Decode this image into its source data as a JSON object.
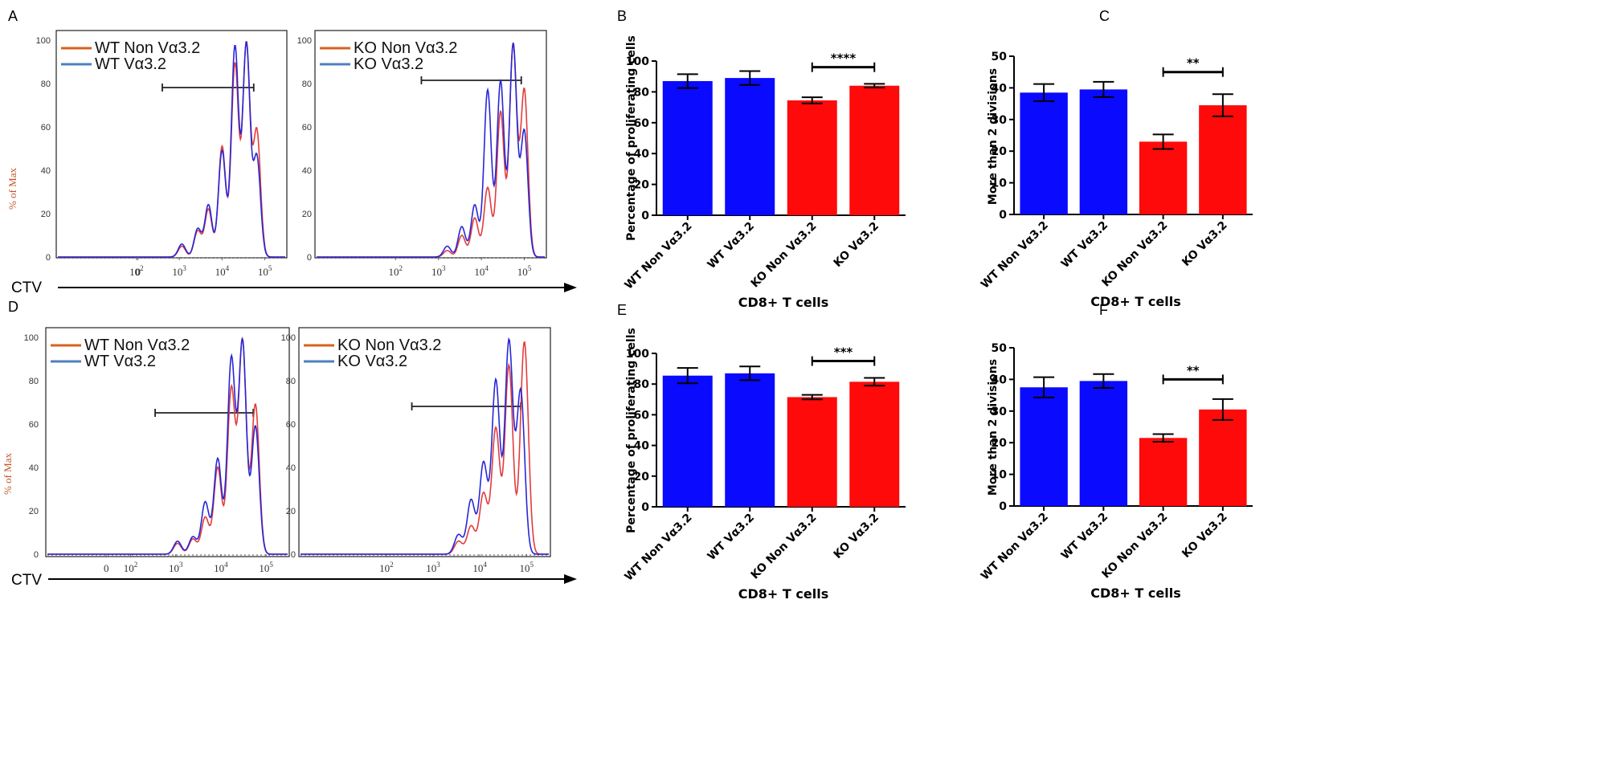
{
  "figure": {
    "axis_label": "CTV",
    "histogram_ylabel": "% of Max",
    "palette": {
      "blue_bar": "#0a0aff",
      "red_bar": "#ff0a0a",
      "blue_line": "#2727d8",
      "red_line": "#e23c3c",
      "legend_orange": "#d9611c",
      "legend_blue": "#4f7fbf",
      "ylabel_color": "#c0562a"
    }
  },
  "chart_data": [
    {
      "id": "A",
      "panel_label": "A",
      "type": "line",
      "title": "",
      "xlabel": "CTV",
      "ylabel": "% of Max",
      "x_scale": "log",
      "xlim": [
        0,
        300000
      ],
      "ylim": [
        0,
        100
      ],
      "y_ticks": [
        "0",
        "20",
        "40",
        "60",
        "80",
        "100"
      ],
      "x_ticks": [
        {
          "b": "0",
          "e": ""
        },
        {
          "b": "10",
          "e": "2"
        },
        {
          "b": "10",
          "e": "3"
        },
        {
          "b": "10",
          "e": "4"
        },
        {
          "b": "10",
          "e": "5"
        }
      ],
      "subplots": [
        {
          "legend": [
            {
              "name": "WT Non Vα3.2",
              "color": "#d9611c"
            },
            {
              "name": "WT Vα3.2",
              "color": "#4f7fbf"
            }
          ],
          "gate": [
            400,
            55000
          ],
          "series": [
            {
              "name": "WT Non Vα3.2",
              "color": "#e23c3c",
              "peaks": [
                [
                  1150,
                  5
                ],
                [
                  2700,
                  12
                ],
                [
                  4800,
                  22
                ],
                [
                  10000,
                  51
                ],
                [
                  20000,
                  89
                ],
                [
                  37000,
                  98
                ],
                [
                  65000,
                  58
                ]
              ]
            },
            {
              "name": "WT Vα3.2",
              "color": "#2727d8",
              "peaks": [
                [
                  1150,
                  6
                ],
                [
                  2700,
                  13
                ],
                [
                  4800,
                  24
                ],
                [
                  10000,
                  49
                ],
                [
                  20000,
                  97
                ],
                [
                  37000,
                  98
                ],
                [
                  65000,
                  46
                ]
              ]
            }
          ]
        },
        {
          "legend": [
            {
              "name": "KO Non Vα3.2",
              "color": "#d9611c"
            },
            {
              "name": "KO Vα3.2",
              "color": "#4f7fbf"
            }
          ],
          "gate": [
            400,
            85000
          ],
          "series": [
            {
              "name": "KO Non Vα3.2",
              "color": "#e23c3c",
              "peaks": [
                [
                  1600,
                  3
                ],
                [
                  3500,
                  10
                ],
                [
                  7000,
                  18
                ],
                [
                  14000,
                  32
                ],
                [
                  28000,
                  67
                ],
                [
                  55000,
                  98
                ],
                [
                  100000,
                  77
                ]
              ]
            },
            {
              "name": "KO Vα3.2",
              "color": "#2727d8",
              "peaks": [
                [
                  1600,
                  5
                ],
                [
                  3500,
                  14
                ],
                [
                  7000,
                  24
                ],
                [
                  14000,
                  77
                ],
                [
                  28000,
                  81
                ],
                [
                  55000,
                  98
                ],
                [
                  100000,
                  58
                ]
              ]
            }
          ]
        }
      ]
    },
    {
      "id": "B",
      "panel_label": "B",
      "type": "bar",
      "title": "",
      "xlabel": "CD8+ T cells",
      "ylabel": "Percentage of proliferating cells",
      "categories": [
        "WT Non Vα3.2",
        "WT Vα3.2",
        "KO Non Vα3.2",
        "KO Vα3.2"
      ],
      "values": [
        87,
        89,
        74.5,
        84
      ],
      "errors": [
        4.5,
        4.5,
        2,
        1.2
      ],
      "colors": [
        "#0a0aff",
        "#0a0aff",
        "#ff0a0a",
        "#ff0a0a"
      ],
      "ylim": [
        0,
        100
      ],
      "y_ticks": [
        "0",
        "20",
        "40",
        "60",
        "80",
        "100"
      ],
      "significance": {
        "from": 2,
        "to": 3,
        "label": "****",
        "y": 96
      }
    },
    {
      "id": "C",
      "panel_label": "C",
      "type": "bar",
      "title": "",
      "xlabel": "CD8+ T cells",
      "ylabel": "More than 2 divisions",
      "categories": [
        "WT Non Vα3.2",
        "WT Vα3.2",
        "KO Non Vα3.2",
        "KO Vα3.2"
      ],
      "values": [
        38.5,
        39.5,
        23,
        34.5
      ],
      "errors": [
        2.7,
        2.4,
        2.3,
        3.5
      ],
      "colors": [
        "#0a0aff",
        "#0a0aff",
        "#ff0a0a",
        "#ff0a0a"
      ],
      "ylim": [
        0,
        50
      ],
      "y_ticks": [
        "0",
        "10",
        "20",
        "30",
        "40",
        "50"
      ],
      "significance": {
        "from": 2,
        "to": 3,
        "label": "**",
        "y": 45
      }
    },
    {
      "id": "D",
      "panel_label": "D",
      "type": "line",
      "title": "",
      "xlabel": "CTV",
      "ylabel": "% of Max",
      "x_scale": "log",
      "xlim": [
        0,
        300000
      ],
      "ylim": [
        0,
        100
      ],
      "y_ticks": [
        "0",
        "20",
        "40",
        "60",
        "80",
        "100"
      ],
      "x_ticks": [
        {
          "b": "0",
          "e": ""
        },
        {
          "b": "10",
          "e": "2"
        },
        {
          "b": "10",
          "e": "3"
        },
        {
          "b": "10",
          "e": "4"
        },
        {
          "b": "10",
          "e": "5"
        }
      ],
      "subplots": [
        {
          "legend": [
            {
              "name": "WT Non Vα3.2",
              "color": "#d9611c"
            },
            {
              "name": "WT Vα3.2",
              "color": "#4f7fbf"
            }
          ],
          "gate": [
            350,
            52000
          ],
          "series": [
            {
              "name": "WT Non Vα3.2",
              "color": "#e23c3c",
              "peaks": [
                [
                  1100,
                  5
                ],
                [
                  2400,
                  7
                ],
                [
                  4500,
                  17
                ],
                [
                  8500,
                  40
                ],
                [
                  17000,
                  76
                ],
                [
                  30000,
                  98
                ],
                [
                  58000,
                  69
                ]
              ]
            },
            {
              "name": "WT Vα3.2",
              "color": "#2727d8",
              "peaks": [
                [
                  1100,
                  6
                ],
                [
                  2400,
                  8
                ],
                [
                  4500,
                  24
                ],
                [
                  8500,
                  44
                ],
                [
                  17000,
                  90
                ],
                [
                  30000,
                  98
                ],
                [
                  58000,
                  59
                ]
              ]
            }
          ]
        },
        {
          "legend": [
            {
              "name": "KO Non Vα3.2",
              "color": "#d9611c"
            },
            {
              "name": "KO Vα3.2",
              "color": "#4f7fbf"
            }
          ],
          "gate": [
            350,
            75000
          ],
          "series": [
            {
              "name": "KO Non Vα3.2",
              "color": "#e23c3c",
              "peaks": [
                [
                  3500,
                  6
                ],
                [
                  6500,
                  13
                ],
                [
                  12000,
                  28
                ],
                [
                  22000,
                  58
                ],
                [
                  42000,
                  87
                ],
                [
                  90000,
                  98
                ]
              ]
            },
            {
              "name": "KO Vα3.2",
              "color": "#2727d8",
              "peaks": [
                [
                  3500,
                  9
                ],
                [
                  6500,
                  25
                ],
                [
                  12000,
                  42
                ],
                [
                  22000,
                  80
                ],
                [
                  42000,
                  98
                ],
                [
                  75000,
                  75
                ]
              ]
            }
          ]
        }
      ]
    },
    {
      "id": "E",
      "panel_label": "E",
      "type": "bar",
      "title": "",
      "xlabel": "CD8+ T cells",
      "ylabel": "Percentage of proliferating cells",
      "categories": [
        "WT Non Vα3.2",
        "WT Vα3.2",
        "KO Non Vα3.2",
        "KO Vα3.2"
      ],
      "values": [
        85.5,
        87,
        71.5,
        81.5
      ],
      "errors": [
        5,
        4.5,
        1.5,
        2.5
      ],
      "colors": [
        "#0a0aff",
        "#0a0aff",
        "#ff0a0a",
        "#ff0a0a"
      ],
      "ylim": [
        0,
        100
      ],
      "y_ticks": [
        "0",
        "20",
        "40",
        "60",
        "80",
        "100"
      ],
      "significance": {
        "from": 2,
        "to": 3,
        "label": "***",
        "y": 95
      }
    },
    {
      "id": "F",
      "panel_label": "F",
      "type": "bar",
      "title": "",
      "xlabel": "CD8+ T cells",
      "ylabel": "More than 2 divisions",
      "categories": [
        "WT Non Vα3.2",
        "WT Vα3.2",
        "KO Non Vα3.2",
        "KO Vα3.2"
      ],
      "values": [
        37.5,
        39.5,
        21.5,
        30.5
      ],
      "errors": [
        3.2,
        2.2,
        1.2,
        3.3
      ],
      "colors": [
        "#0a0aff",
        "#0a0aff",
        "#ff0a0a",
        "#ff0a0a"
      ],
      "ylim": [
        0,
        50
      ],
      "y_ticks": [
        "0",
        "10",
        "20",
        "30",
        "40",
        "50"
      ],
      "significance": {
        "from": 2,
        "to": 3,
        "label": "**",
        "y": 40
      }
    }
  ]
}
